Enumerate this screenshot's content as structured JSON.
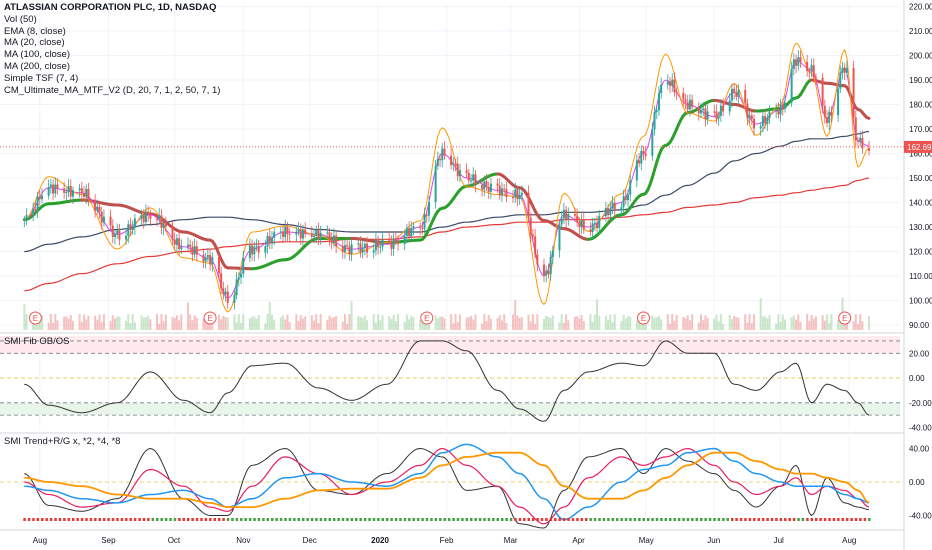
{
  "legend": {
    "title": "ATLASSIAN CORPORATION PLC, 1D, NASDAQ",
    "lines": [
      "Vol (50)",
      "EMA (8, close)",
      "MA (20, close)",
      "MA (100, close)",
      "MA (200, close)",
      "Simple TSF (7, 4)",
      "CM_Ultimate_MA_MTF_V2 (D, 20, 7, 1, 2, 50, 7, 1)"
    ]
  },
  "panes": {
    "smi_fib": "SMI Fib OB/OS",
    "smi_trend": "SMI Trend+R/G x, *2, *4, *8"
  },
  "earnings_marker": "E",
  "colors": {
    "up": "#26a69a",
    "down": "#ef5350",
    "ma_green": "#2ca02c",
    "ma_red": "#c0504d",
    "ema": "#e040fb",
    "tsf": "#ff9800",
    "ma100": "#3b4a66",
    "ma200": "#e53935",
    "smi": "#333333",
    "smi_blue": "#2196f3",
    "smi_orange": "#ff9800",
    "smi_magenta": "#e91e63"
  },
  "chart_data": [
    {
      "type": "line",
      "name": "price",
      "x_labels": [
        "Aug",
        "Sep",
        "Oct",
        "Nov",
        "Dec",
        "2020",
        "Feb",
        "Mar",
        "Apr",
        "May",
        "Jun",
        "Jul",
        "Aug"
      ],
      "y_ticks": [
        "220.00",
        "210.00",
        "200.00",
        "190.00",
        "180.00",
        "170.00",
        "160.00",
        "150.00",
        "140.00",
        "130.00",
        "120.00",
        "110.00",
        "100.00",
        "90.00"
      ],
      "ylim": [
        88,
        221
      ],
      "last_price": "162.69",
      "dates": [
        "2019-07-25",
        "2019-08-05",
        "2019-08-20",
        "2019-09-05",
        "2019-09-20",
        "2019-10-05",
        "2019-10-17",
        "2019-10-25",
        "2019-11-05",
        "2019-11-20",
        "2019-12-05",
        "2019-12-20",
        "2020-01-05",
        "2020-01-20",
        "2020-01-30",
        "2020-02-10",
        "2020-02-24",
        "2020-03-05",
        "2020-03-16",
        "2020-03-25",
        "2020-04-05",
        "2020-04-20",
        "2020-04-30",
        "2020-05-10",
        "2020-05-20",
        "2020-06-01",
        "2020-06-10",
        "2020-06-20",
        "2020-07-01",
        "2020-07-08",
        "2020-07-15",
        "2020-07-22",
        "2020-07-30",
        "2020-08-05",
        "2020-08-10"
      ],
      "series": [
        {
          "name": "close",
          "values": [
            133,
            146,
            144,
            127,
            135,
            122,
            117,
            101,
            121,
            128,
            127,
            121,
            123,
            130,
            160,
            150,
            145,
            143,
            110,
            135,
            130,
            140,
            160,
            190,
            180,
            175,
            185,
            172,
            178,
            198,
            194,
            174,
            195,
            165,
            163
          ]
        },
        {
          "name": "MA (100, close)",
          "values": [
            120,
            123,
            126,
            129,
            131,
            133,
            134,
            134,
            133,
            131,
            129,
            128,
            128,
            128,
            130,
            132,
            134,
            135,
            135,
            136,
            136,
            137,
            139,
            143,
            147,
            152,
            157,
            160,
            163,
            165,
            166,
            166,
            167,
            168,
            169
          ]
        },
        {
          "name": "MA (200, close)",
          "values": [
            104,
            107,
            111,
            115,
            118,
            120,
            121,
            122,
            123,
            124,
            124,
            125,
            125,
            126,
            128,
            130,
            131,
            132,
            132,
            133,
            133,
            134,
            135,
            136,
            138,
            139,
            140,
            142,
            143,
            144,
            145,
            146,
            147,
            149,
            150
          ]
        }
      ]
    },
    {
      "type": "line",
      "name": "SMI Fib OB/OS",
      "y_ticks": [
        "20.00",
        "0.00",
        "-20.00",
        "-40.00"
      ],
      "ylim": [
        -42,
        34
      ],
      "levels": [
        30,
        20,
        0,
        -20,
        -30
      ],
      "values": [
        -5,
        -22,
        -28,
        -20,
        5,
        -18,
        -28,
        -12,
        10,
        12,
        -8,
        -18,
        -5,
        30,
        30,
        22,
        -10,
        -25,
        -35,
        -10,
        5,
        12,
        10,
        30,
        20,
        20,
        -5,
        -10,
        5,
        12,
        -20,
        -5,
        -10,
        -20,
        -30
      ]
    },
    {
      "type": "line",
      "name": "SMI Trend+R/G x, *2, *4, *8",
      "y_ticks": [
        "40.00",
        "0.00",
        "-40.00"
      ],
      "ylim": [
        -55,
        55
      ],
      "series": [
        {
          "name": "x",
          "values": [
            10,
            -28,
            -35,
            -20,
            40,
            -20,
            -40,
            -40,
            20,
            40,
            -10,
            -15,
            10,
            40,
            30,
            -10,
            -5,
            -50,
            -55,
            -10,
            30,
            40,
            10,
            40,
            25,
            10,
            -10,
            -30,
            -5,
            20,
            -40,
            5,
            -25,
            -30,
            -33
          ]
        },
        {
          "name": "*2",
          "values": [
            0,
            -15,
            -30,
            -25,
            15,
            -5,
            -30,
            -35,
            -5,
            30,
            10,
            -15,
            0,
            20,
            40,
            20,
            -5,
            -30,
            -50,
            -30,
            5,
            30,
            20,
            30,
            40,
            20,
            0,
            -15,
            -5,
            5,
            -15,
            -5,
            -10,
            -20,
            -30
          ]
        },
        {
          "name": "*4",
          "values": [
            -5,
            -10,
            -20,
            -25,
            -15,
            -10,
            -20,
            -30,
            -20,
            5,
            10,
            0,
            -5,
            10,
            35,
            45,
            30,
            10,
            -20,
            -45,
            -30,
            0,
            15,
            20,
            35,
            40,
            25,
            10,
            0,
            -5,
            -5,
            -5,
            -15,
            -20,
            -25
          ]
        },
        {
          "name": "*8",
          "values": [
            5,
            0,
            -5,
            -15,
            -20,
            -20,
            -25,
            -30,
            -30,
            -20,
            -10,
            -8,
            -8,
            5,
            20,
            30,
            35,
            35,
            20,
            -5,
            -20,
            -20,
            -10,
            5,
            20,
            35,
            35,
            25,
            15,
            10,
            10,
            5,
            0,
            -10,
            -25
          ]
        }
      ]
    }
  ]
}
